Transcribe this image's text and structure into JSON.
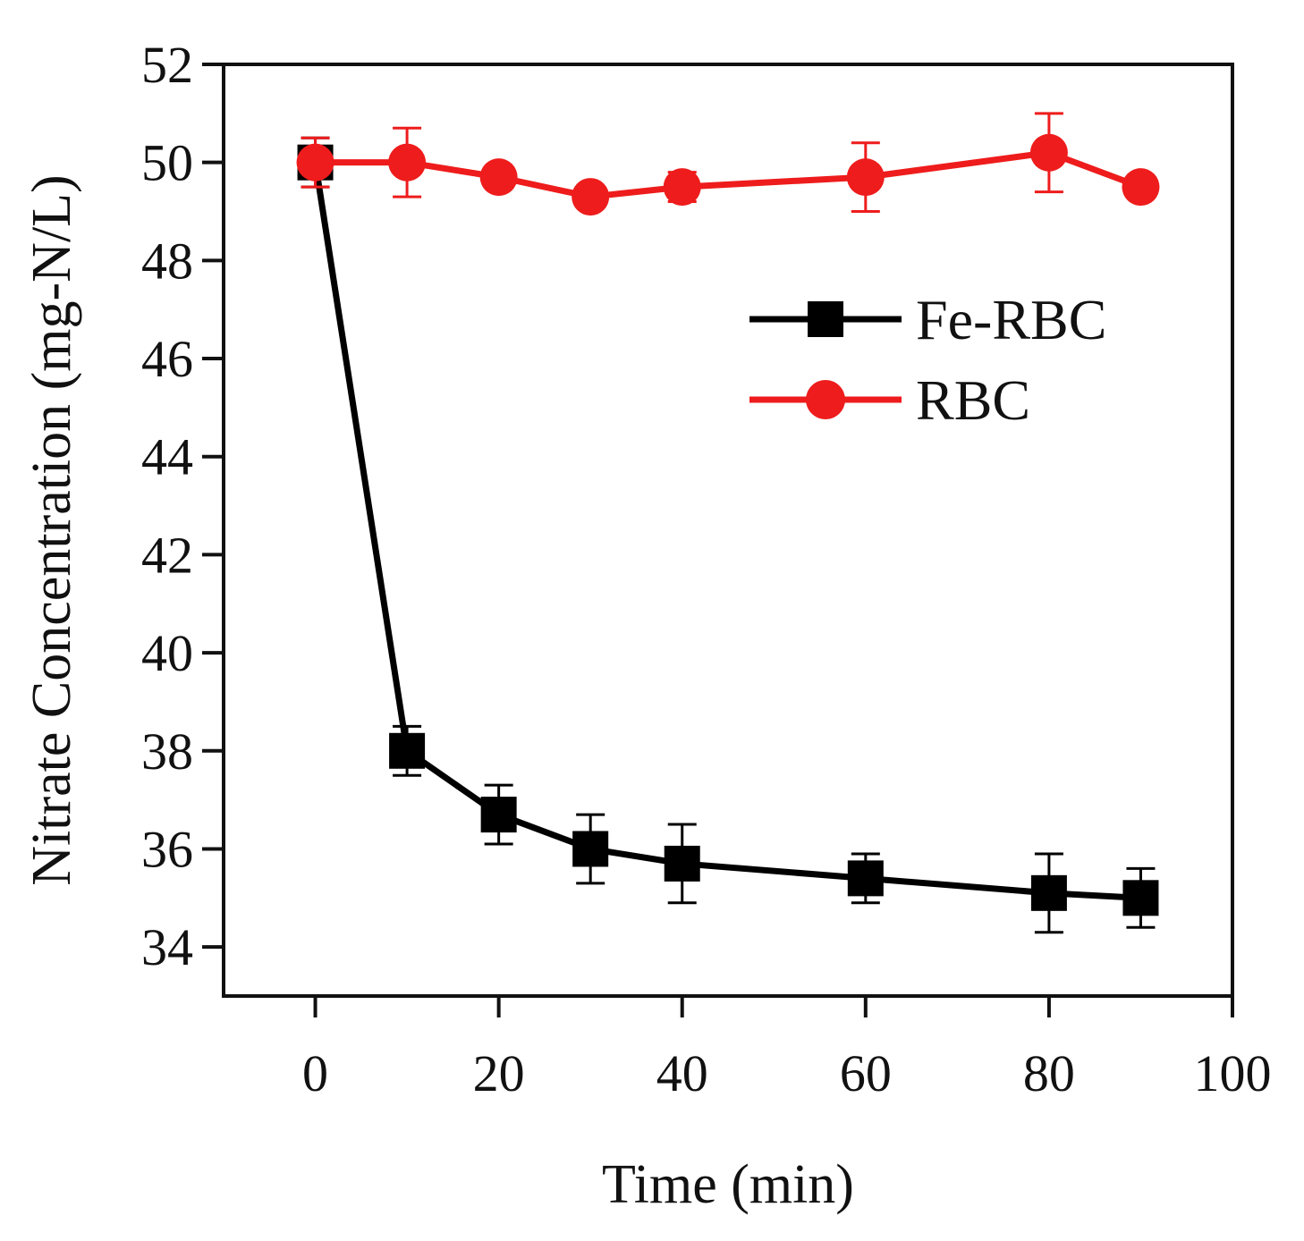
{
  "chart_data": {
    "type": "line",
    "title": "",
    "xlabel": "Time (min)",
    "ylabel": "Nitrate Concentration (mg-N/L)",
    "xlim": [
      -10,
      100
    ],
    "ylim": [
      33,
      52
    ],
    "xticks": [
      0,
      20,
      40,
      60,
      80,
      100
    ],
    "yticks": [
      34,
      36,
      38,
      40,
      42,
      44,
      46,
      48,
      50,
      52
    ],
    "grid": false,
    "legend_position": "top-right",
    "series": [
      {
        "name": "Fe-RBC",
        "color": "#000000",
        "marker": "square",
        "x": [
          0,
          10,
          20,
          30,
          40,
          60,
          80,
          90
        ],
        "y": [
          50.0,
          38.0,
          36.7,
          36.0,
          35.7,
          35.4,
          35.1,
          35.0
        ],
        "error": [
          0.5,
          0.5,
          0.6,
          0.7,
          0.8,
          0.5,
          0.8,
          0.6
        ]
      },
      {
        "name": "RBC",
        "color": "#ee1c1c",
        "marker": "circle",
        "x": [
          0,
          10,
          20,
          30,
          40,
          60,
          80,
          90
        ],
        "y": [
          50.0,
          50.0,
          49.7,
          49.3,
          49.5,
          49.7,
          50.2,
          49.5
        ],
        "error": [
          0.5,
          0.7,
          0.2,
          0.2,
          0.3,
          0.7,
          0.8,
          0.2
        ]
      }
    ]
  }
}
